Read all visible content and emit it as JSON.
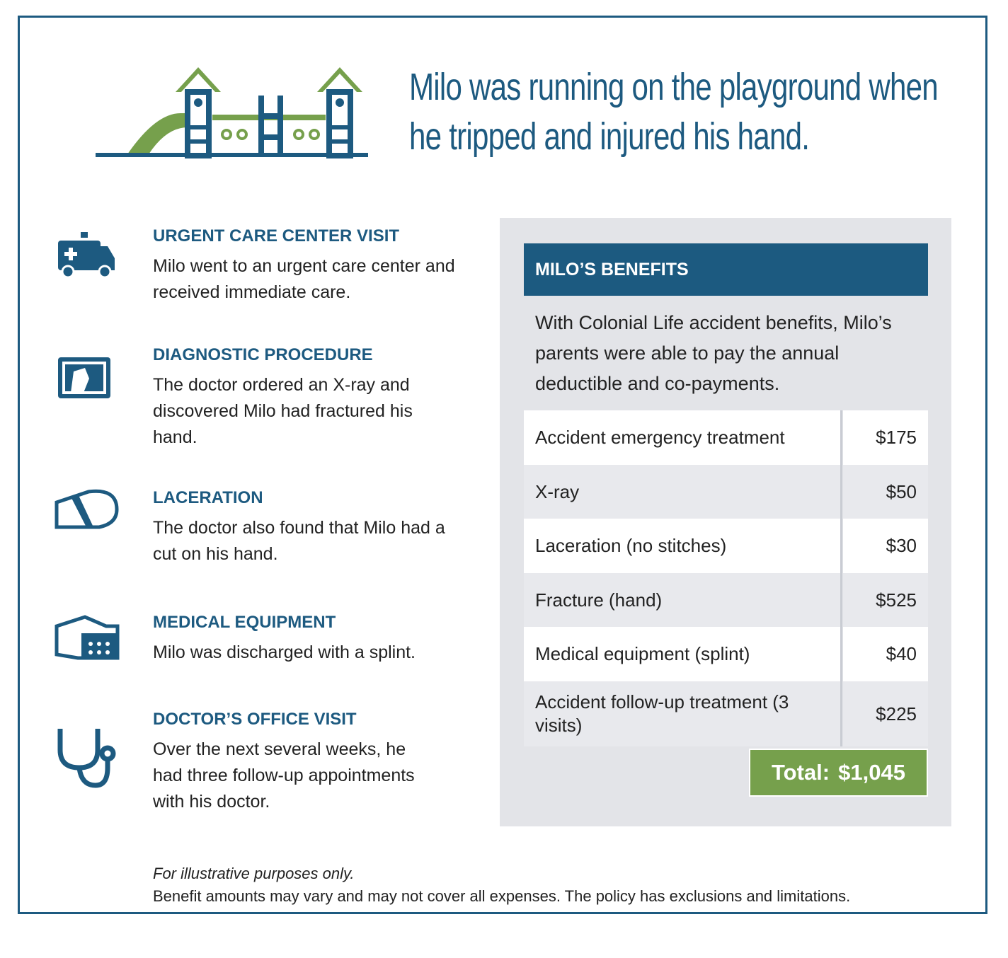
{
  "header": {
    "title_lines": [
      "Milo was running on the playground when",
      "he tripped and injured his hand."
    ]
  },
  "events": [
    {
      "heading": "URGENT CARE CENTER VISIT",
      "text": "Milo went to an urgent care center and received immediate care."
    },
    {
      "heading": "DIAGNOSTIC PROCEDURE",
      "text": "The doctor ordered an X-ray and discovered Milo had fractured his hand."
    },
    {
      "heading": "LACERATION",
      "text": "The doctor also found that Milo had a cut on his hand."
    },
    {
      "heading": "MEDICAL EQUIPMENT",
      "text": "Milo was discharged with a splint."
    },
    {
      "heading": "DOCTOR’S OFFICE VISIT",
      "text": "Over the next several weeks, he had three follow-up appointments with his doctor."
    }
  ],
  "benefits": {
    "heading": "MILO’S BENEFITS",
    "intro": "With Colonial Life accident benefits, Milo’s parents were able to pay the annual deductible and co-payments.",
    "rows": [
      [
        "Accident emergency treatment",
        "$175"
      ],
      [
        "X-ray",
        "$50"
      ],
      [
        "Laceration (no stitches)",
        "$30"
      ],
      [
        "Fracture (hand)",
        "$525"
      ],
      [
        "Medical equipment (splint)",
        "$40"
      ],
      [
        "Accident follow-up treatment (3 visits)",
        "$225"
      ]
    ],
    "total_label": "Total:",
    "total_value": "$1,045"
  },
  "footnote": {
    "line1": "For illustrative purposes only.",
    "line2": "Benefit amounts may vary and may not cover all expenses. The policy has exclusions and limitations."
  }
}
